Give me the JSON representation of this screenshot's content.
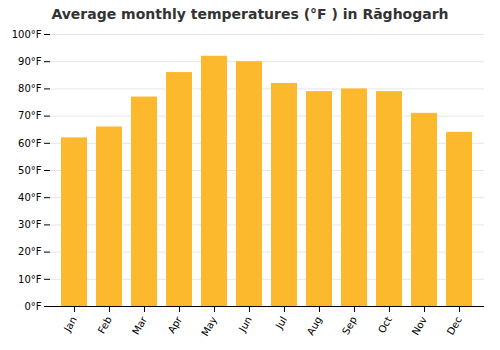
{
  "chart_data": {
    "type": "bar",
    "title": "Average monthly temperatures (°F ) in Rāghogarh",
    "categories": [
      "Jan",
      "Feb",
      "Mar",
      "Apr",
      "May",
      "Jun",
      "Jul",
      "Aug",
      "Sep",
      "Oct",
      "Nov",
      "Dec"
    ],
    "values": [
      62,
      66,
      77,
      86,
      92,
      90,
      82,
      79,
      80,
      79,
      71,
      64
    ],
    "color": "#FDB92E",
    "ylim": [
      0,
      100
    ],
    "yticks": [
      {
        "value": 0,
        "label": "0°F"
      },
      {
        "value": 10,
        "label": "10°F"
      },
      {
        "value": 20,
        "label": "20°F"
      },
      {
        "value": 30,
        "label": "30°F"
      },
      {
        "value": 40,
        "label": "40°F"
      },
      {
        "value": 50,
        "label": "50°F"
      },
      {
        "value": 60,
        "label": "60°F"
      },
      {
        "value": 70,
        "label": "70°F"
      },
      {
        "value": 80,
        "label": "80°F"
      },
      {
        "value": 90,
        "label": "90°F"
      },
      {
        "value": 100,
        "label": "100°F"
      }
    ],
    "grid": true
  }
}
